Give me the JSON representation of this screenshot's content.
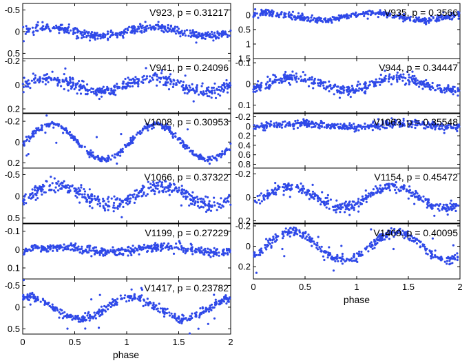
{
  "chart_data": {
    "type": "scatter",
    "title": "",
    "xlabel": "phase",
    "xlim": [
      0,
      2
    ],
    "x_ticks": [
      0,
      0.5,
      1,
      1.5,
      2
    ],
    "x_tick_labels": [
      "0",
      "0.5",
      "1",
      "1.5",
      "2"
    ],
    "y_inverted": true,
    "marker_color": "#2f49e8",
    "panels": [
      {
        "id": "V923",
        "label": "V923, p = 0.31217",
        "column": "left",
        "row": 0,
        "ylim": [
          -0.65,
          0.62
        ],
        "y_ticks": [
          -0.5,
          0,
          0.5
        ],
        "y_tick_labels": [
          "-0.5",
          "0",
          "0.5"
        ],
        "amplitude": 0.1,
        "cycles_per_unit": 1,
        "phase_of_max": 0.25,
        "mean": 0.0,
        "scatter": 0.05
      },
      {
        "id": "V941",
        "label": "V941, p = 0.24096",
        "column": "left",
        "row": 1,
        "ylim": [
          -0.22,
          0.24
        ],
        "y_ticks": [
          -0.2,
          0,
          0.2
        ],
        "y_tick_labels": [
          "-0.2",
          "0",
          "0.2"
        ],
        "amplitude": 0.06,
        "cycles_per_unit": 1,
        "phase_of_max": 0.25,
        "mean": 0.0,
        "scatter": 0.025
      },
      {
        "id": "V1008",
        "label": "V1008, p = 0.30953",
        "column": "left",
        "row": 2,
        "ylim": [
          -0.28,
          0.25
        ],
        "y_ticks": [
          -0.2,
          0,
          0.2
        ],
        "y_tick_labels": [
          "-0.2",
          "0",
          "0.2"
        ],
        "amplitude": 0.17,
        "cycles_per_unit": 1,
        "phase_of_max": 0.28,
        "mean": 0.0,
        "scatter": 0.015
      },
      {
        "id": "V1066",
        "label": "V1066, p = 0.37322",
        "column": "left",
        "row": 3,
        "ylim": [
          -0.65,
          0.62
        ],
        "y_ticks": [
          -0.5,
          0,
          0.5
        ],
        "y_tick_labels": [
          "-0.5",
          "0",
          "0.5"
        ],
        "amplitude": 0.22,
        "cycles_per_unit": 1,
        "phase_of_max": 0.33,
        "mean": -0.02,
        "scatter": 0.08
      },
      {
        "id": "V1199",
        "label": "V1199, p = 0.27229",
        "column": "left",
        "row": 4,
        "ylim": [
          -0.14,
          0.16
        ],
        "y_ticks": [
          -0.1,
          0,
          0.1
        ],
        "y_tick_labels": [
          "-0.1",
          "0",
          "0.1"
        ],
        "amplitude": 0.015,
        "cycles_per_unit": 1,
        "phase_of_max": 0.35,
        "mean": 0.0,
        "scatter": 0.012
      },
      {
        "id": "V1417",
        "label": "V1417, p = 0.23782",
        "column": "left",
        "row": 5,
        "ylim": [
          -0.65,
          0.62
        ],
        "y_ticks": [
          -0.5,
          0,
          0.5
        ],
        "y_tick_labels": [
          "-0.5",
          "0",
          "0.5"
        ],
        "amplitude": 0.25,
        "cycles_per_unit": 1,
        "phase_of_max": 0.05,
        "mean": 0.02,
        "scatter": 0.05
      },
      {
        "id": "V935",
        "label": "V935, p = 0.3566",
        "column": "right",
        "row": 0,
        "ylim": [
          -0.4,
          1.5
        ],
        "y_ticks": [
          0,
          0.5,
          1,
          1.5
        ],
        "y_tick_labels": [
          "0",
          "0.5",
          "1",
          "1.5"
        ],
        "amplitude": 0.12,
        "cycles_per_unit": 1,
        "phase_of_max": 0.15,
        "mean": 0.05,
        "scatter": 0.05
      },
      {
        "id": "V944",
        "label": "V944, p = 0.34447",
        "column": "right",
        "row": 1,
        "ylim": [
          -0.12,
          0.14
        ],
        "y_ticks": [
          -0.1,
          0,
          0.1
        ],
        "y_tick_labels": [
          "-0.1",
          "0",
          "0.1"
        ],
        "amplitude": 0.03,
        "cycles_per_unit": 1,
        "phase_of_max": 0.4,
        "mean": 0.0,
        "scatter": 0.012
      },
      {
        "id": "V1063",
        "label": "V1063, p = 0.35548",
        "column": "right",
        "row": 2,
        "ylim": [
          -0.28,
          0.88
        ],
        "y_ticks": [
          -0.2,
          0,
          0.2,
          0.4,
          0.6,
          0.8
        ],
        "y_tick_labels": [
          "-0.2",
          "0",
          "0.2",
          "0.4",
          "0.6",
          "0.8"
        ],
        "amplitude": 0.04,
        "cycles_per_unit": 1,
        "phase_of_max": 0.45,
        "mean": -0.02,
        "scatter": 0.04
      },
      {
        "id": "V1154",
        "label": "V1154, p = 0.45472",
        "column": "right",
        "row": 3,
        "ylim": [
          -0.25,
          0.22
        ],
        "y_ticks": [
          -0.2,
          0,
          0.2
        ],
        "y_tick_labels": [
          "-0.2",
          "0",
          "0.2"
        ],
        "amplitude": 0.09,
        "cycles_per_unit": 1,
        "phase_of_max": 0.35,
        "mean": 0.0,
        "scatter": 0.02
      },
      {
        "id": "V1409",
        "label": "V1409, p = 0.40095",
        "column": "right",
        "row": 4,
        "ylim": [
          -0.22,
          0.32
        ],
        "y_ticks": [
          -0.2,
          0,
          0.2
        ],
        "y_tick_labels": [
          "-0.2",
          "0",
          "0.2"
        ],
        "amplitude": 0.14,
        "cycles_per_unit": 1,
        "phase_of_max": 0.38,
        "mean": 0.0,
        "scatter": 0.02
      }
    ]
  }
}
